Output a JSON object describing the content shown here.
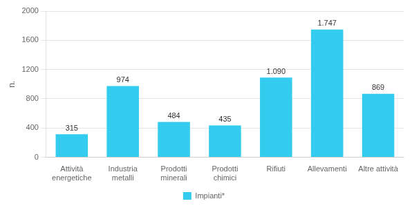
{
  "chart_data": {
    "type": "bar",
    "categories": [
      "Attività\nenergetiche",
      "Industria\nmetalli",
      "Prodotti\nminerali",
      "Prodotti\nchimici",
      "Rifiuti",
      "Allevamenti",
      "Altre attività"
    ],
    "series": [
      {
        "name": "Impianti*",
        "color": "#33CCEE",
        "values": [
          315,
          974,
          484,
          435,
          1090,
          1747,
          869
        ],
        "value_labels": [
          "315",
          "974",
          "484",
          "435",
          "1.090",
          "1.747",
          "869"
        ]
      }
    ],
    "ylabel": "n.",
    "ylim": [
      0,
      2000
    ],
    "yticks": [
      0,
      400,
      800,
      1200,
      1600,
      2000
    ],
    "grid": true,
    "legend": "bottom",
    "data_labels": true
  }
}
